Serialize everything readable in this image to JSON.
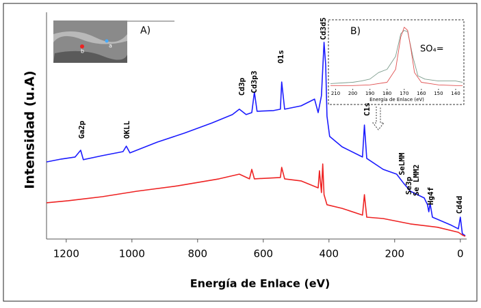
{
  "chart_data": [
    {
      "type": "line",
      "xlabel": "Energía de Enlace (eV)",
      "ylabel": "Intensidad (u.A)",
      "xlim": [
        1260,
        -15
      ],
      "ylim": [
        0,
        100
      ],
      "xticks": [
        1200,
        1000,
        800,
        600,
        400,
        200,
        0
      ],
      "series": [
        {
          "color": "#1a1aff",
          "x": [
            1260,
            1215,
            1173,
            1156,
            1148,
            1090,
            1027,
            1017,
            1006,
            923,
            840,
            756,
            694,
            673,
            652,
            635,
            627,
            619,
            569,
            548,
            544,
            535,
            485,
            444,
            433,
            423,
            415,
            410,
            406,
            398,
            360,
            298,
            292,
            285,
            235,
            194,
            173,
            152,
            110,
            100,
            96,
            92,
            85,
            27,
            6,
            0,
            -6,
            -15
          ],
          "values": [
            34.2,
            35.5,
            36.4,
            39.4,
            35.2,
            37.0,
            38.8,
            41.2,
            38.2,
            43.0,
            47.0,
            51.5,
            55.2,
            57.6,
            55.2,
            56.1,
            65.2,
            56.7,
            57.0,
            57.6,
            69.7,
            57.6,
            59.1,
            62.1,
            56.1,
            63.6,
            87.3,
            77.3,
            54.5,
            45.5,
            40.9,
            36.4,
            50.6,
            35.8,
            30.9,
            28.8,
            24.8,
            21.2,
            18.2,
            15.2,
            12.1,
            15.8,
            9.7,
            6.1,
            4.5,
            9.7,
            2.4,
            1.5
          ]
        },
        {
          "color": "#ee2222",
          "x": [
            1260,
            1194,
            1090,
            985,
            860,
            735,
            673,
            642,
            635,
            627,
            548,
            544,
            535,
            485,
            433,
            429,
            423,
            419,
            415,
            406,
            360,
            298,
            292,
            285,
            235,
            152,
            69,
            6,
            -6,
            -15
          ],
          "values": [
            16.1,
            17.0,
            18.8,
            21.2,
            23.6,
            26.7,
            28.8,
            26.7,
            30.9,
            26.7,
            27.3,
            31.8,
            26.7,
            25.8,
            22.7,
            30.3,
            20.6,
            33.3,
            19.7,
            15.2,
            13.6,
            10.6,
            19.7,
            9.7,
            9.1,
            6.7,
            5.2,
            3.0,
            1.8,
            1.2
          ]
        }
      ],
      "annotations": [
        "Ga2p",
        "OKLL",
        "Cd3p",
        "Cd3p3",
        "O1s",
        "Cd3d5",
        "C1s",
        "SeLMM",
        "Se3p",
        "Se LMM2",
        "Hg4f",
        "Cd4d"
      ],
      "image_inset": {
        "title": "A)",
        "markers": [
          "a",
          "b"
        ]
      }
    },
    {
      "type": "line",
      "title": "B)",
      "annotation": "SO₄=",
      "xlabel": "Energía de Enlace (eV)",
      "xlim": [
        213,
        136
      ],
      "ylim": [
        0,
        100
      ],
      "xticks": [
        210,
        200,
        190,
        180,
        170,
        160,
        150,
        140
      ],
      "series": [
        {
          "color": "#7a9a8a",
          "x": [
            213,
            200,
            195,
            190,
            185,
            180,
            175,
            172,
            170,
            168,
            165,
            162,
            158,
            150,
            140,
            136
          ],
          "values": [
            8,
            10,
            12,
            15,
            25,
            30,
            50,
            85,
            90,
            88,
            50,
            20,
            15,
            12,
            12,
            10
          ]
        },
        {
          "color": "#e05050",
          "x": [
            213,
            200,
            190,
            180,
            175,
            172,
            170,
            168,
            166,
            164,
            160,
            150,
            140,
            136
          ],
          "values": [
            5,
            5,
            6,
            10,
            30,
            80,
            95,
            90,
            60,
            25,
            10,
            6,
            5,
            5
          ]
        }
      ]
    }
  ]
}
